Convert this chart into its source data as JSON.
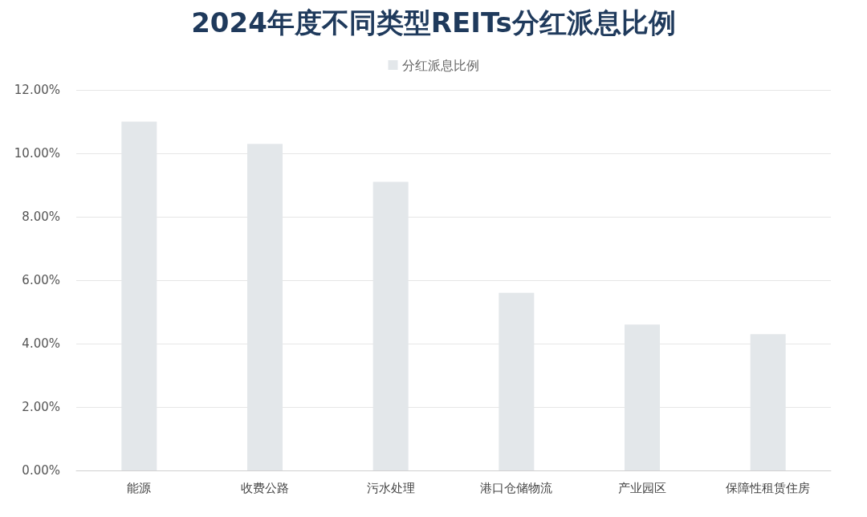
{
  "chart_data": {
    "type": "bar",
    "title": "2024年度不同类型REITs分红派息比例",
    "categories": [
      "能源",
      "收费公路",
      "污水处理",
      "港口仓储物流",
      "产业园区",
      "保障性租赁住房"
    ],
    "series": [
      {
        "name": "分红派息比例",
        "color": "#e3e7ea",
        "values": [
          11.0,
          10.3,
          9.1,
          5.6,
          4.6,
          4.3
        ]
      }
    ],
    "ylim": [
      0,
      12
    ],
    "yticks": [
      {
        "value": 0,
        "label": "0.00%"
      },
      {
        "value": 2,
        "label": "2.00%"
      },
      {
        "value": 4,
        "label": "4.00%"
      },
      {
        "value": 6,
        "label": "6.00%"
      },
      {
        "value": 8,
        "label": "8.00%"
      },
      {
        "value": 10,
        "label": "10.00%"
      },
      {
        "value": 12,
        "label": "12.00%"
      }
    ],
    "grid": "y",
    "legend": "top"
  }
}
